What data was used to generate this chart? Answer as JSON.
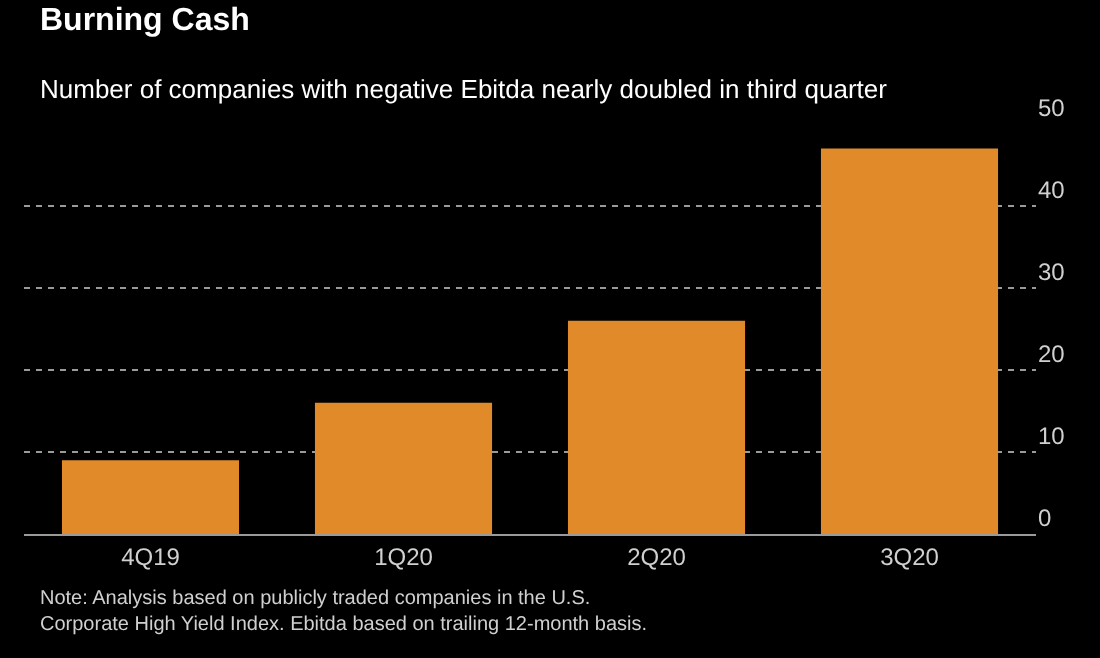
{
  "chart_data": {
    "type": "bar",
    "title": "Burning Cash",
    "subtitle": "Number of companies with negative Ebitda nearly doubled in third quarter",
    "categories": [
      "4Q19",
      "1Q20",
      "2Q20",
      "3Q20"
    ],
    "values": [
      9,
      16,
      26,
      47
    ],
    "color": "#e08a2a",
    "ylim": [
      0,
      50
    ],
    "yticks": [
      0,
      10,
      20,
      30,
      40,
      50
    ],
    "grid": "y",
    "annotations": [
      "Note: Analysis based on publicly traded companies in the U.S.\nCorporate High Yield Index. Ebitda based on trailing 12-month basis."
    ]
  }
}
